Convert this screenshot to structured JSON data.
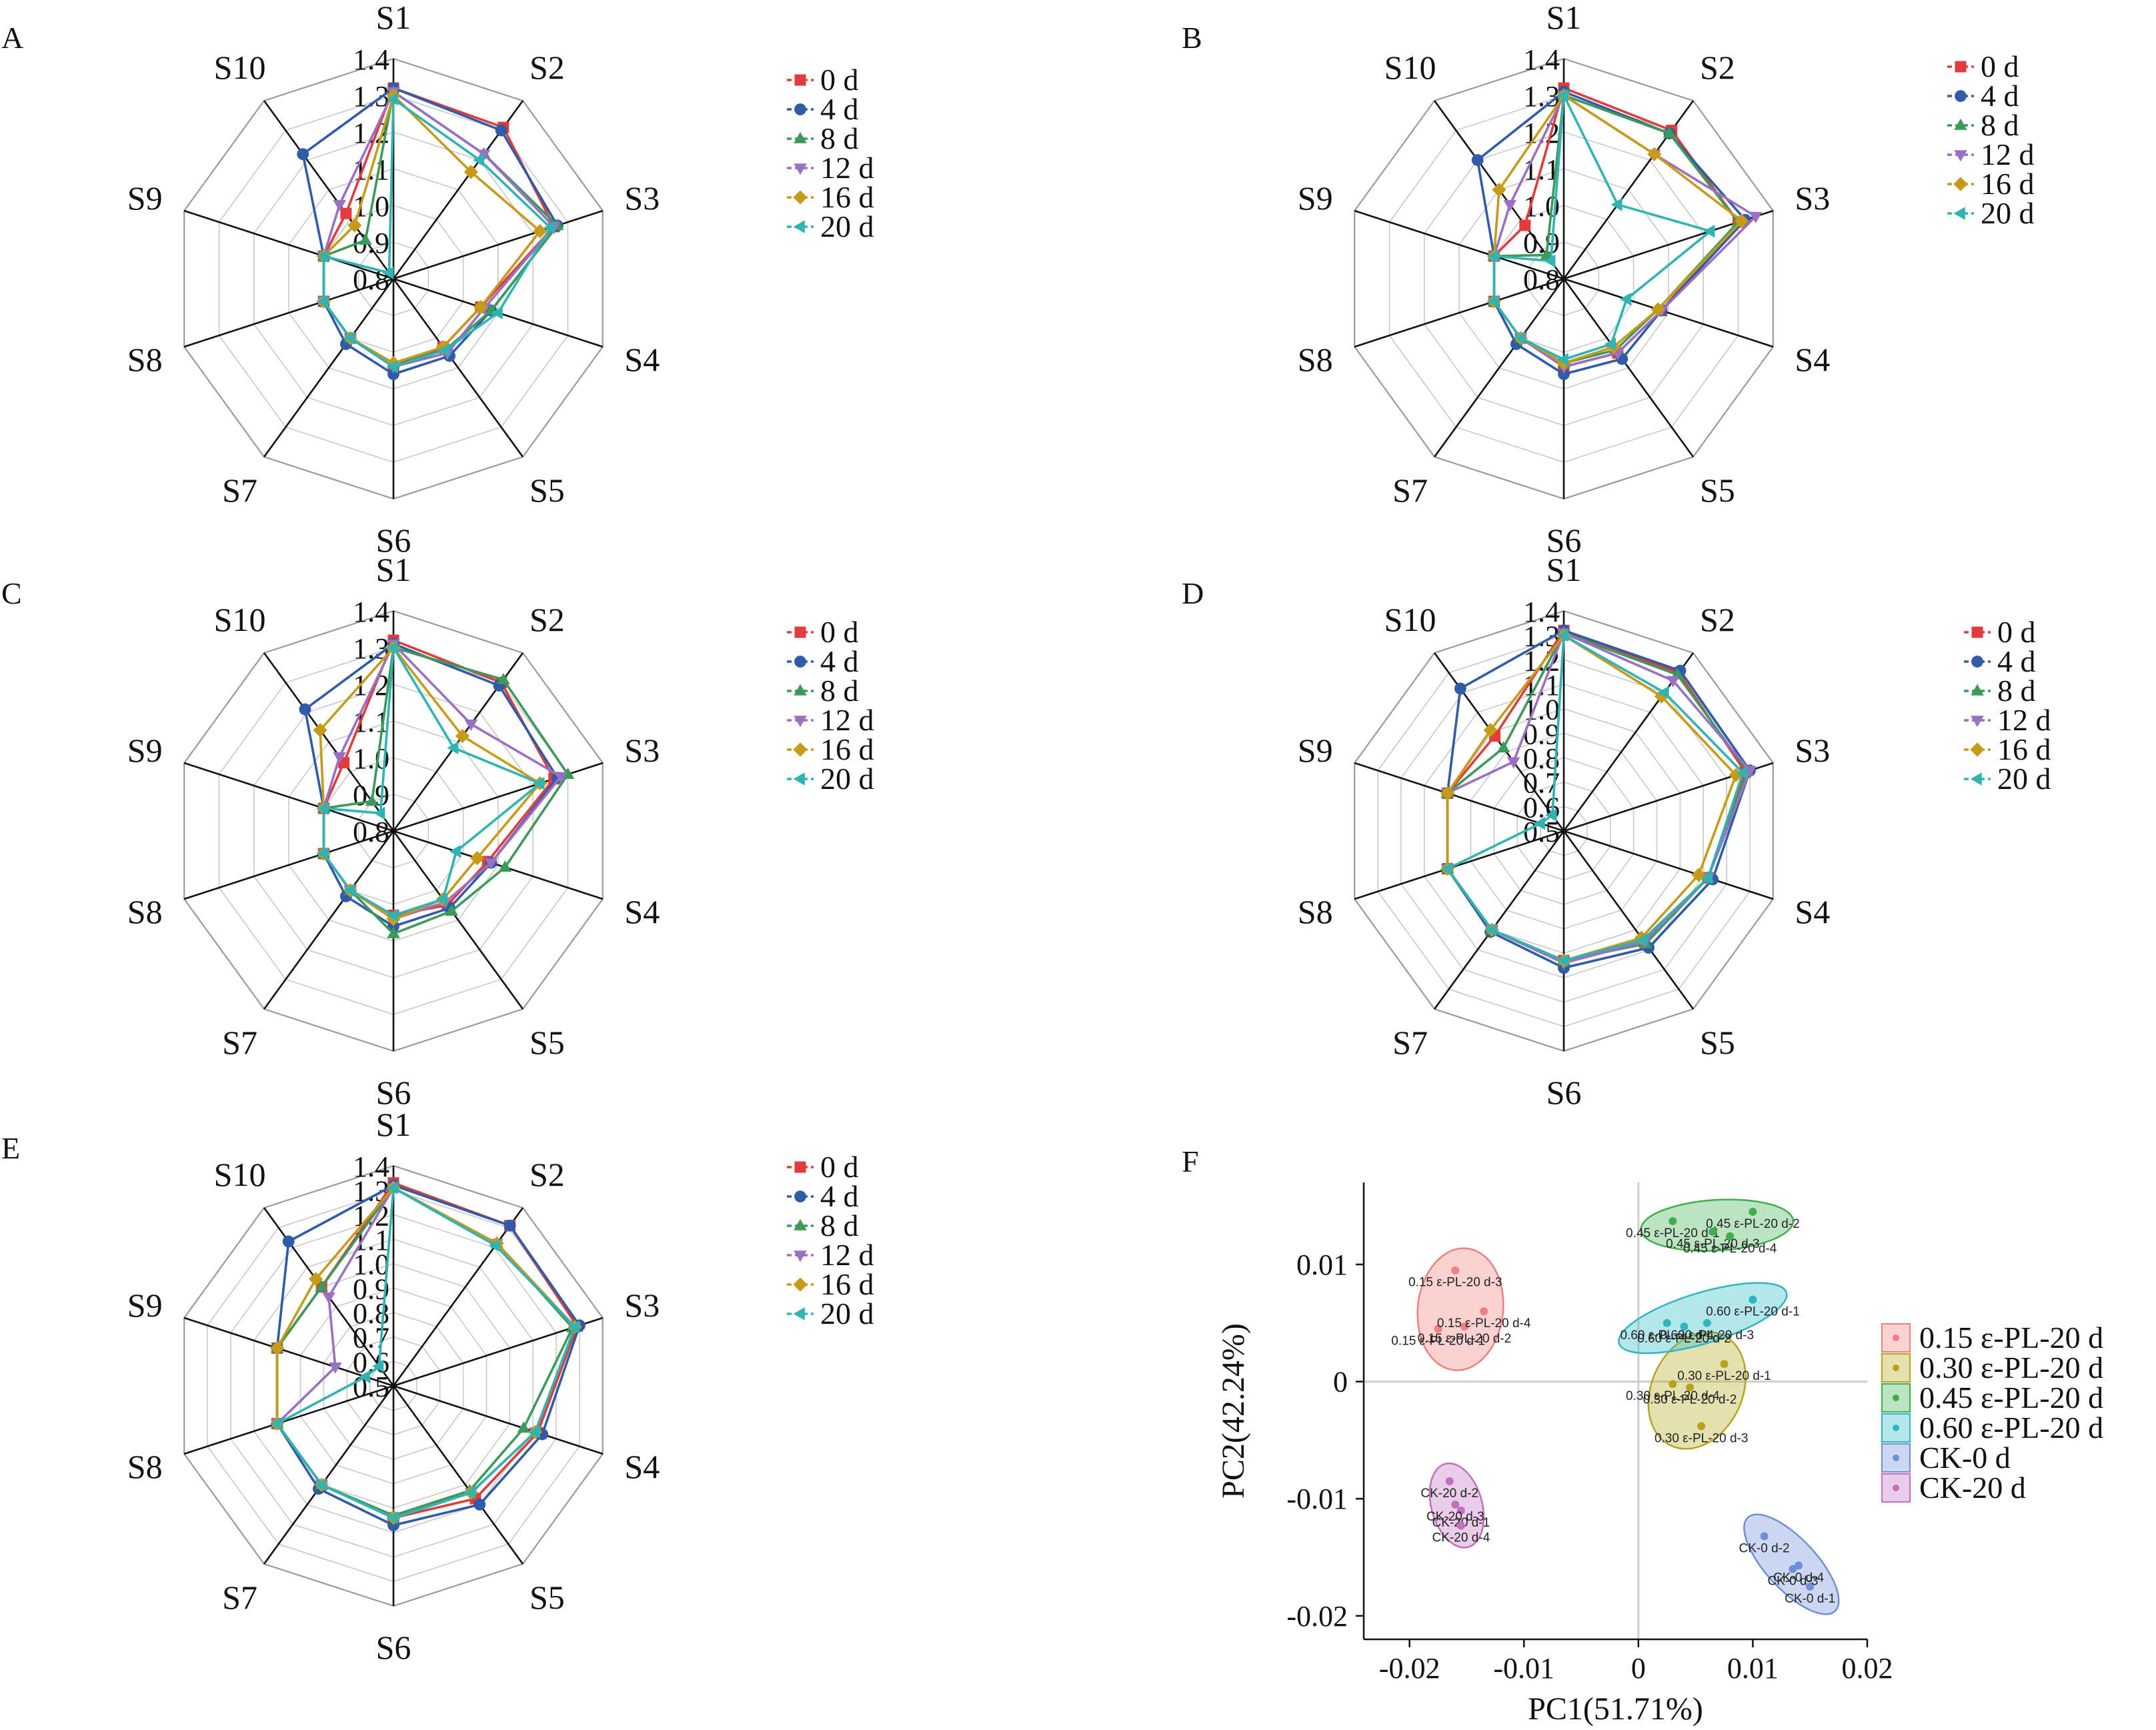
{
  "series_colors": {
    "0 d": "#e23b3b",
    "4 d": "#2f5ba8",
    "8 d": "#3a9a5a",
    "12 d": "#9a6fc4",
    "16 d": "#c79a17",
    "20 d": "#30b3b3"
  },
  "radar_axes": [
    "S1",
    "S2",
    "S3",
    "S4",
    "S5",
    "S6",
    "S7",
    "S8",
    "S9",
    "S10"
  ],
  "radar_legend": [
    "0 d",
    "4 d",
    "8 d",
    "12 d",
    "16 d",
    "20 d"
  ],
  "chart_data": [
    {
      "panel_label": "A",
      "type": "radar",
      "axes": [
        "S1",
        "S2",
        "S3",
        "S4",
        "S5",
        "S6",
        "S7",
        "S8",
        "S9",
        "S10"
      ],
      "rlim": [
        0.8,
        1.4
      ],
      "ticks": [
        "0.8",
        "0.9",
        "1.0",
        "1.1",
        "1.2",
        "1.3",
        "1.4"
      ],
      "series": [
        {
          "name": "0 d",
          "values": [
            1.32,
            1.31,
            1.26,
            1.05,
            1.03,
            1.04,
            1.0,
            1.0,
            1.0,
            1.02
          ]
        },
        {
          "name": "4 d",
          "values": [
            1.32,
            1.3,
            1.27,
            1.08,
            1.06,
            1.06,
            1.02,
            1.0,
            1.0,
            1.22
          ]
        },
        {
          "name": "8 d",
          "values": [
            1.31,
            1.22,
            1.27,
            1.08,
            1.04,
            1.03,
            1.0,
            1.0,
            1.0,
            0.93
          ]
        },
        {
          "name": "12 d",
          "values": [
            1.31,
            1.22,
            1.26,
            1.06,
            1.05,
            1.04,
            1.0,
            1.0,
            1.0,
            1.05
          ]
        },
        {
          "name": "16 d",
          "values": [
            1.3,
            1.16,
            1.22,
            1.05,
            1.03,
            1.03,
            1.0,
            1.0,
            1.0,
            0.98
          ]
        },
        {
          "name": "20 d",
          "values": [
            1.29,
            1.2,
            1.25,
            1.1,
            1.04,
            1.04,
            1.0,
            1.0,
            1.0,
            0.82
          ]
        }
      ]
    },
    {
      "panel_label": "B",
      "type": "radar",
      "axes": [
        "S1",
        "S2",
        "S3",
        "S4",
        "S5",
        "S6",
        "S7",
        "S8",
        "S9",
        "S10"
      ],
      "rlim": [
        0.8,
        1.4
      ],
      "ticks": [
        "0.8",
        "0.9",
        "1.0",
        "1.1",
        "1.2",
        "1.3",
        "1.4"
      ],
      "series": [
        {
          "name": "0 d",
          "values": [
            1.32,
            1.3,
            1.3,
            1.08,
            1.05,
            1.04,
            1.0,
            1.0,
            1.0,
            0.98
          ]
        },
        {
          "name": "4 d",
          "values": [
            1.31,
            1.29,
            1.32,
            1.08,
            1.07,
            1.06,
            1.02,
            1.0,
            1.0,
            1.2
          ]
        },
        {
          "name": "8 d",
          "values": [
            1.3,
            1.29,
            1.3,
            1.07,
            1.04,
            1.03,
            1.0,
            1.0,
            1.0,
            0.88
          ]
        },
        {
          "name": "12 d",
          "values": [
            1.3,
            1.22,
            1.35,
            1.08,
            1.05,
            1.04,
            1.0,
            1.0,
            1.0,
            1.05
          ]
        },
        {
          "name": "16 d",
          "values": [
            1.3,
            1.22,
            1.31,
            1.07,
            1.03,
            1.03,
            1.0,
            1.0,
            1.0,
            1.1
          ]
        },
        {
          "name": "20 d",
          "values": [
            1.3,
            1.05,
            1.22,
            0.98,
            1.02,
            1.02,
            1.0,
            1.0,
            1.0,
            0.86
          ]
        }
      ]
    },
    {
      "panel_label": "C",
      "type": "radar",
      "axes": [
        "S1",
        "S2",
        "S3",
        "S4",
        "S5",
        "S6",
        "S7",
        "S8",
        "S9",
        "S10"
      ],
      "rlim": [
        0.8,
        1.4
      ],
      "ticks": [
        "0.8",
        "0.9",
        "1.0",
        "1.1",
        "1.2",
        "1.3",
        "1.4"
      ],
      "series": [
        {
          "name": "0 d",
          "values": [
            1.32,
            1.3,
            1.26,
            1.07,
            1.05,
            1.03,
            1.0,
            1.0,
            1.0,
            1.03
          ]
        },
        {
          "name": "4 d",
          "values": [
            1.31,
            1.29,
            1.27,
            1.08,
            1.06,
            1.06,
            1.02,
            1.0,
            1.0,
            1.21
          ]
        },
        {
          "name": "8 d",
          "values": [
            1.3,
            1.31,
            1.3,
            1.12,
            1.07,
            1.08,
            1.0,
            1.0,
            1.0,
            0.9
          ]
        },
        {
          "name": "12 d",
          "values": [
            1.31,
            1.16,
            1.28,
            1.08,
            1.04,
            1.04,
            1.0,
            1.0,
            1.0,
            1.05
          ]
        },
        {
          "name": "16 d",
          "values": [
            1.3,
            1.12,
            1.22,
            1.04,
            1.03,
            1.04,
            1.0,
            1.0,
            1.0,
            1.14
          ]
        },
        {
          "name": "20 d",
          "values": [
            1.3,
            1.08,
            1.22,
            0.98,
            1.03,
            1.03,
            1.0,
            1.0,
            1.0,
            0.86
          ]
        }
      ]
    },
    {
      "panel_label": "D",
      "type": "radar",
      "axes": [
        "S1",
        "S2",
        "S3",
        "S4",
        "S5",
        "S6",
        "S7",
        "S8",
        "S9",
        "S10"
      ],
      "rlim": [
        0.5,
        1.4
      ],
      "ticks": [
        "0.5",
        "0.6",
        "0.7",
        "0.8",
        "0.9",
        "1.0",
        "1.1",
        "1.2",
        "1.3",
        "1.4"
      ],
      "series": [
        {
          "name": "0 d",
          "values": [
            1.32,
            1.3,
            1.28,
            1.12,
            1.06,
            1.03,
            1.0,
            1.0,
            1.0,
            0.98
          ]
        },
        {
          "name": "4 d",
          "values": [
            1.32,
            1.31,
            1.3,
            1.14,
            1.09,
            1.06,
            1.01,
            1.0,
            1.0,
            1.22
          ]
        },
        {
          "name": "8 d",
          "values": [
            1.31,
            1.29,
            1.29,
            1.12,
            1.07,
            1.03,
            1.0,
            1.0,
            1.0,
            0.92
          ]
        },
        {
          "name": "12 d",
          "values": [
            1.31,
            1.26,
            1.3,
            1.12,
            1.06,
            1.04,
            1.0,
            1.0,
            1.0,
            0.85
          ]
        },
        {
          "name": "16 d",
          "values": [
            1.3,
            1.18,
            1.24,
            1.08,
            1.04,
            1.03,
            1.0,
            1.0,
            1.0,
            1.01
          ]
        },
        {
          "name": "20 d",
          "values": [
            1.3,
            1.2,
            1.27,
            1.12,
            1.05,
            1.03,
            1.0,
            1.0,
            0.6,
            0.58
          ]
        }
      ]
    },
    {
      "panel_label": "E",
      "type": "radar",
      "axes": [
        "S1",
        "S2",
        "S3",
        "S4",
        "S5",
        "S6",
        "S7",
        "S8",
        "S9",
        "S10"
      ],
      "rlim": [
        0.5,
        1.4
      ],
      "ticks": [
        "0.5",
        "0.6",
        "0.7",
        "0.8",
        "0.9",
        "1.0",
        "1.1",
        "1.2",
        "1.3",
        "1.4"
      ],
      "series": [
        {
          "name": "0 d",
          "values": [
            1.33,
            1.31,
            1.29,
            1.12,
            1.07,
            1.04,
            1.0,
            1.0,
            1.0,
            1.0
          ]
        },
        {
          "name": "4 d",
          "values": [
            1.32,
            1.31,
            1.3,
            1.14,
            1.1,
            1.07,
            1.02,
            1.0,
            1.0,
            1.23
          ]
        },
        {
          "name": "8 d",
          "values": [
            1.31,
            1.22,
            1.27,
            1.06,
            1.03,
            1.03,
            1.0,
            1.0,
            1.0,
            1.0
          ]
        },
        {
          "name": "12 d",
          "values": [
            1.31,
            1.22,
            1.28,
            1.11,
            1.04,
            1.04,
            1.0,
            1.0,
            0.75,
            0.95
          ]
        },
        {
          "name": "16 d",
          "values": [
            1.31,
            1.22,
            1.28,
            1.11,
            1.04,
            1.04,
            1.0,
            1.0,
            1.0,
            1.04
          ]
        },
        {
          "name": "20 d",
          "values": [
            1.31,
            1.21,
            1.28,
            1.11,
            1.04,
            1.04,
            1.0,
            1.0,
            0.62,
            0.6
          ]
        }
      ]
    },
    {
      "panel_label": "F",
      "type": "scatter",
      "xlabel": "PC1(51.71%)",
      "ylabel": "PC2(42.24%)",
      "xlim": [
        -0.024,
        0.02
      ],
      "ylim": [
        -0.022,
        0.017
      ],
      "xticks": [
        -0.02,
        -0.01,
        0,
        0.01,
        0.02
      ],
      "xtick_labels": [
        "-0.02",
        "-0.01",
        "0",
        "0.01",
        "0.02"
      ],
      "yticks": [
        0.01,
        0,
        -0.01,
        -0.02
      ],
      "ytick_labels": [
        "0.01",
        "0",
        "-0.01",
        "-0.02"
      ],
      "groups": [
        {
          "name": "0.15 ε-PL-20 d",
          "color": "#f07f7f",
          "points": [
            {
              "label": "0.15 ε-PL-20 d-1",
              "x": -0.0175,
              "y": 0.0045
            },
            {
              "label": "0.15 ε-PL-20 d-2",
              "x": -0.0152,
              "y": 0.0047
            },
            {
              "label": "0.15 ε-PL-20 d-3",
              "x": -0.016,
              "y": 0.0095
            },
            {
              "label": "0.15 ε-PL-20 d-4",
              "x": -0.0135,
              "y": 0.006
            }
          ]
        },
        {
          "name": "0.30 ε-PL-20 d",
          "color": "#b5a51c",
          "points": [
            {
              "label": "0.30 ε-PL-20 d-1",
              "x": 0.0075,
              "y": 0.0015
            },
            {
              "label": "0.30 ε-PL-20 d-2",
              "x": 0.0045,
              "y": -0.0005
            },
            {
              "label": "0.30 ε-PL-20 d-3",
              "x": 0.0055,
              "y": -0.0038
            },
            {
              "label": "0.30 ε-PL-20 d-4",
              "x": 0.003,
              "y": -0.0002
            }
          ]
        },
        {
          "name": "0.45 ε-PL-20 d",
          "color": "#3fae4f",
          "points": [
            {
              "label": "0.45 ε-PL-20 d-1",
              "x": 0.003,
              "y": 0.0137
            },
            {
              "label": "0.45 ε-PL-20 d-2",
              "x": 0.01,
              "y": 0.0145
            },
            {
              "label": "0.45 ε-PL-20 d-3",
              "x": 0.0065,
              "y": 0.0128
            },
            {
              "label": "0.45 ε-PL-20 d-4",
              "x": 0.008,
              "y": 0.0124
            }
          ]
        },
        {
          "name": "0.60 ε-PL-20 d",
          "color": "#2ab7c0",
          "points": [
            {
              "label": "0.60 ε-PL-20 d-1",
              "x": 0.01,
              "y": 0.007
            },
            {
              "label": "0.60 ε-PL-20 d-2",
              "x": 0.004,
              "y": 0.0047
            },
            {
              "label": "0.60 ε-PL-20 d-3",
              "x": 0.006,
              "y": 0.005
            },
            {
              "label": "0.60 ε-PL-20 d-4",
              "x": 0.0025,
              "y": 0.005
            }
          ]
        },
        {
          "name": "CK-0 d",
          "color": "#6d8fd6",
          "points": [
            {
              "label": "CK-0 d-1",
              "x": 0.015,
              "y": -0.0175
            },
            {
              "label": "CK-0 d-2",
              "x": 0.011,
              "y": -0.0132
            },
            {
              "label": "CK-0 d-3",
              "x": 0.0135,
              "y": -0.016
            },
            {
              "label": "CK-0 d-4",
              "x": 0.014,
              "y": -0.0157
            }
          ]
        },
        {
          "name": "CK-20 d",
          "color": "#c36fbd",
          "points": [
            {
              "label": "CK-20 d-1",
              "x": -0.0155,
              "y": -0.011
            },
            {
              "label": "CK-20 d-2",
              "x": -0.0165,
              "y": -0.0085
            },
            {
              "label": "CK-20 d-3",
              "x": -0.016,
              "y": -0.0105
            },
            {
              "label": "CK-20 d-4",
              "x": -0.0155,
              "y": -0.0123
            }
          ]
        }
      ]
    }
  ]
}
